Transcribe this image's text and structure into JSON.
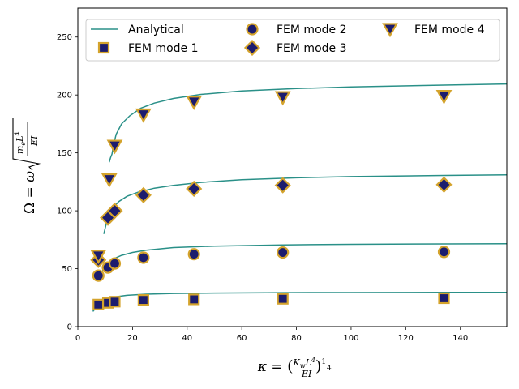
{
  "chart_data": {
    "type": "scatter",
    "title": "",
    "xlabel": "κ = (KwL⁴/EI)^(1/4)",
    "ylabel": "Ω = ω√(meL⁴/EI)",
    "xlim": [
      0,
      157
    ],
    "ylim": [
      0,
      275
    ],
    "xticks": [
      0,
      20,
      40,
      60,
      80,
      100,
      120,
      140
    ],
    "yticks": [
      0,
      50,
      100,
      150,
      200,
      250
    ],
    "grid": false,
    "legend_position": "top",
    "colors": {
      "analytical_line": "#2a9088",
      "marker_fill": "#1c1c6e",
      "marker_edge": "#d4a32c"
    },
    "series": [
      {
        "name": "Analytical",
        "kind": "line",
        "curves": [
          {
            "mode": 1,
            "x": [
              5.5,
              8,
              10,
              13,
              18,
              25,
              35,
              50,
              75,
              100,
              134,
              157
            ],
            "y": [
              13,
              20,
              23,
              25.5,
              27,
              28,
              28.6,
              29.0,
              29.3,
              29.4,
              29.5,
              29.6
            ]
          },
          {
            "mode": 2,
            "x": [
              8,
              9,
              10,
              11,
              13,
              16,
              20,
              25,
              35,
              50,
              75,
              100,
              134,
              157
            ],
            "y": [
              43,
              48,
              52,
              55,
              58.5,
              61.5,
              64,
              66,
              68.2,
              69.5,
              70.5,
              71,
              71.4,
              71.6
            ]
          },
          {
            "mode": 3,
            "x": [
              9.5,
              10.5,
              11.5,
              13,
              15,
              18,
              22,
              28,
              35,
              45,
              60,
              80,
              100,
              134,
              157
            ],
            "y": [
              80,
              90,
              97,
              103,
              108,
              112.5,
              116,
              119.5,
              122,
              124.5,
              126.8,
              128.5,
              129.5,
              130.5,
              131
            ]
          },
          {
            "mode": 4,
            "x": [
              11.5,
              12,
              12.5,
              13,
              14,
              16,
              19,
              23,
              28,
              35,
              45,
              60,
              80,
              100,
              134,
              157
            ],
            "y": [
              142,
              146,
              149,
              156,
              166,
              175,
              182,
              188.5,
              193,
              197,
              200.5,
              203.5,
              205.5,
              207,
              208.5,
              209.5
            ]
          }
        ]
      },
      {
        "name": "FEM mode 1",
        "kind": "scatter",
        "marker": "square",
        "x": [
          7.5,
          11,
          13.5,
          24,
          42.5,
          75,
          134
        ],
        "y": [
          19,
          20.5,
          21.5,
          23,
          23.5,
          24,
          24.5
        ]
      },
      {
        "name": "FEM mode 2",
        "kind": "scatter",
        "marker": "circle",
        "x": [
          7.5,
          11,
          13.5,
          24,
          42.5,
          75,
          134
        ],
        "y": [
          44,
          51,
          54.5,
          59.5,
          62.5,
          64,
          64.5
        ]
      },
      {
        "name": "FEM mode 3",
        "kind": "scatter",
        "marker": "diamond",
        "x": [
          7.5,
          11,
          13.5,
          24,
          42.5,
          75,
          134
        ],
        "y": [
          57.5,
          94,
          100,
          113.5,
          119,
          122,
          122.5
        ]
      },
      {
        "name": "FEM mode 4",
        "kind": "scatter",
        "marker": "triangle-down",
        "x": [
          7.5,
          11.5,
          13.5,
          24,
          42.5,
          75,
          134
        ],
        "y": [
          61,
          127,
          156,
          183,
          194,
          198,
          199
        ]
      }
    ]
  }
}
